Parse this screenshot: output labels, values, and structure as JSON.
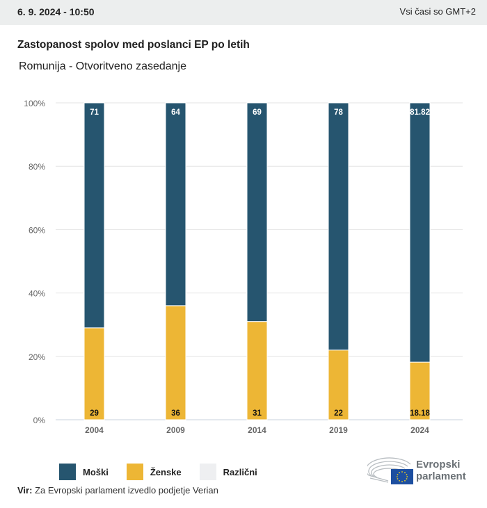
{
  "header": {
    "datetime": "6. 9. 2024 - 10:50",
    "timezone_note": "Vsi časi so GMT+2"
  },
  "title": "Zastopanost spolov med poslanci EP po letih",
  "subtitle": "Romunija - Otvoritveno zasedanje",
  "chart_data": {
    "type": "bar",
    "stacked": true,
    "title": "Zastopanost spolov med poslanci EP po letih",
    "subtitle": "Romunija - Otvoritveno zasedanje",
    "categories": [
      "2004",
      "2009",
      "2014",
      "2019",
      "2024"
    ],
    "series": [
      {
        "name": "Ženske",
        "color": "#edb635",
        "values": [
          29,
          36,
          31,
          22,
          18.18
        ],
        "labels": [
          "29",
          "36",
          "31",
          "22",
          "18.18"
        ]
      },
      {
        "name": "Moški",
        "color": "#26556f",
        "values": [
          71,
          64,
          69,
          78,
          81.82
        ],
        "labels": [
          "71",
          "64",
          "69",
          "78",
          "81.82"
        ]
      },
      {
        "name": "Različni",
        "color": "#eeeff1",
        "values": [
          0,
          0,
          0,
          0,
          0
        ],
        "labels": [
          "",
          "",
          "",
          "",
          ""
        ]
      }
    ],
    "yticks": [
      "0%",
      "20%",
      "40%",
      "60%",
      "80%",
      "100%"
    ],
    "ylim": [
      0,
      100
    ],
    "xlabel": "",
    "ylabel": "",
    "grid": true,
    "legend_position": "bottom-left"
  },
  "legend": [
    {
      "label": "Moški",
      "color": "#26556f"
    },
    {
      "label": "Ženske",
      "color": "#edb635"
    },
    {
      "label": "Različni",
      "color": "#eeeff1"
    }
  ],
  "source": {
    "label": "Vir:",
    "text": "Za Evropski parlament izvedlo podjetje Verian"
  },
  "logo": {
    "line1": "Evropski",
    "line2": "parlament"
  }
}
